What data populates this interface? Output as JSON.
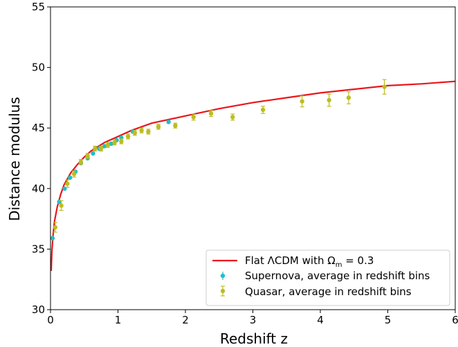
{
  "chart_data": {
    "type": "scatter",
    "xlabel": "Redshift z",
    "ylabel": "Distance modulus",
    "xlim": [
      0,
      6
    ],
    "ylim": [
      30,
      55
    ],
    "xticks": [
      0,
      1,
      2,
      3,
      4,
      5,
      6
    ],
    "yticks": [
      30,
      35,
      40,
      45,
      50,
      55
    ],
    "xtick_labels": [
      "0",
      "1",
      "2",
      "3",
      "4",
      "5",
      "6"
    ],
    "ytick_labels": [
      "30",
      "35",
      "40",
      "45",
      "50",
      "55"
    ],
    "grid": false,
    "legend_position": "lower-right",
    "legend": {
      "model_prefix": "Flat ΛCDM with Ω",
      "model_sub": "m",
      "model_suffix": " = 0.3",
      "supernova": "Supernova, average in redshift bins",
      "quasar": "Quasar, average in redshift bins"
    },
    "colors": {
      "model": "#e8161a",
      "supernova": "#1fbfc8",
      "quasar": "#bcbd22"
    },
    "model": {
      "name": "Flat ΛCDM with Ωm = 0.3",
      "omega_m": 0.3,
      "x": [
        0.01,
        0.02,
        0.04,
        0.06,
        0.1,
        0.15,
        0.2,
        0.3,
        0.4,
        0.5,
        0.6,
        0.8,
        1.0,
        1.2,
        1.5,
        2.0,
        2.5,
        3.0,
        3.5,
        4.0,
        4.5,
        5.0,
        5.5,
        6.0
      ],
      "y": [
        33.2,
        34.8,
        36.3,
        37.3,
        38.5,
        39.5,
        40.3,
        41.3,
        42.0,
        42.6,
        43.1,
        43.8,
        44.3,
        44.8,
        45.4,
        46.0,
        46.6,
        47.1,
        47.5,
        47.9,
        48.2,
        48.5,
        48.65,
        48.85
      ]
    },
    "series": [
      {
        "name": "Supernova, average in redshift bins",
        "x": [
          0.03,
          0.13,
          0.21,
          0.29,
          0.37,
          0.45,
          0.55,
          0.63,
          0.72,
          0.8,
          0.9,
          0.98,
          1.05,
          1.22,
          1.75
        ],
        "y": [
          35.9,
          38.9,
          40.0,
          40.9,
          41.4,
          42.1,
          42.5,
          42.9,
          43.3,
          43.5,
          43.7,
          44.0,
          44.2,
          44.7,
          45.5
        ],
        "err": [
          0.1,
          0.1,
          0.1,
          0.1,
          0.1,
          0.1,
          0.1,
          0.1,
          0.1,
          0.1,
          0.1,
          0.1,
          0.1,
          0.1,
          0.1
        ]
      },
      {
        "name": "Quasar, average in redshift bins",
        "x": [
          0.07,
          0.16,
          0.25,
          0.35,
          0.45,
          0.55,
          0.66,
          0.75,
          0.85,
          0.95,
          1.05,
          1.15,
          1.25,
          1.35,
          1.45,
          1.6,
          1.85,
          2.12,
          2.38,
          2.7,
          3.15,
          3.73,
          4.13,
          4.42,
          4.95
        ],
        "y": [
          36.8,
          38.6,
          40.4,
          41.2,
          42.2,
          42.7,
          43.3,
          43.3,
          43.6,
          43.8,
          43.9,
          44.3,
          44.6,
          44.8,
          44.7,
          45.1,
          45.2,
          45.9,
          46.2,
          45.9,
          46.5,
          47.2,
          47.3,
          47.5,
          48.4
        ],
        "err": [
          0.4,
          0.4,
          0.3,
          0.25,
          0.2,
          0.2,
          0.2,
          0.2,
          0.2,
          0.2,
          0.2,
          0.2,
          0.2,
          0.2,
          0.2,
          0.2,
          0.2,
          0.25,
          0.25,
          0.25,
          0.3,
          0.45,
          0.5,
          0.5,
          0.6
        ]
      }
    ]
  }
}
